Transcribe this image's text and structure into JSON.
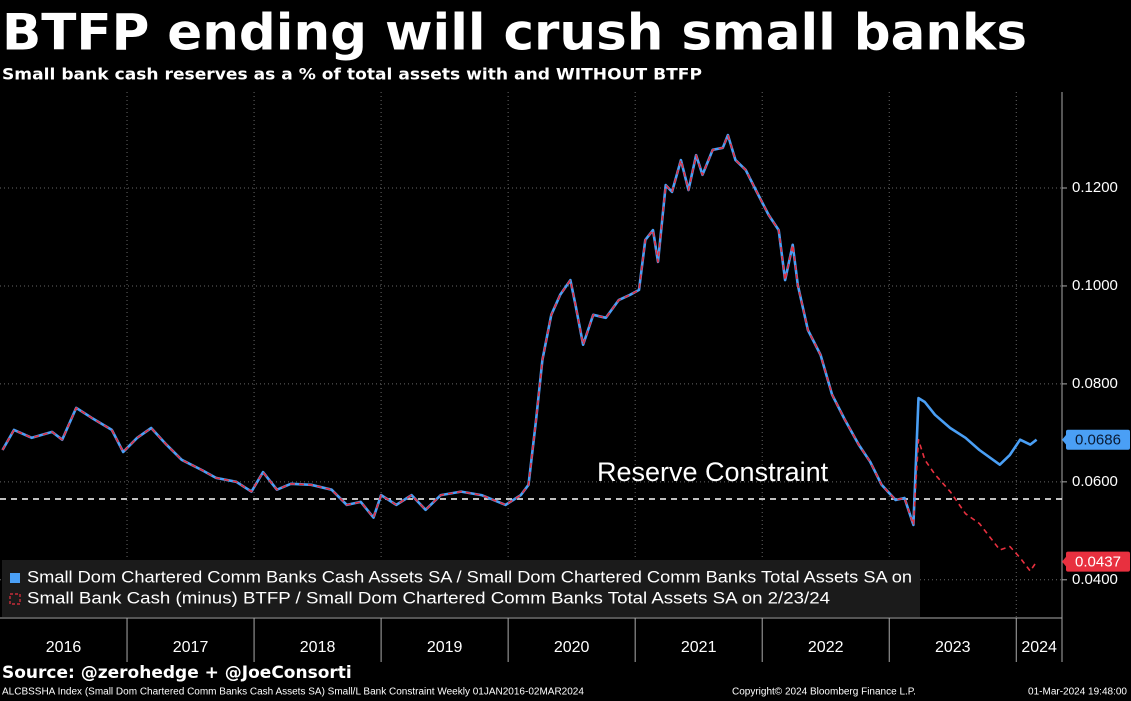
{
  "chart_data": {
    "type": "line",
    "title": "BTFP ending will crush small banks",
    "subtitle": "Small bank cash reserves as a % of total assets with and WITHOUT BTFP",
    "annotation": "Reserve Constraint",
    "reserve_line": 0.0565,
    "x": [
      2016.02,
      2016.11,
      2016.25,
      2016.41,
      2016.49,
      2016.6,
      2016.72,
      2016.88,
      2016.97,
      2017.08,
      2017.19,
      2017.31,
      2017.43,
      2017.59,
      2017.7,
      2017.86,
      2017.98,
      2018.07,
      2018.18,
      2018.29,
      2018.45,
      2018.61,
      2018.73,
      2018.84,
      2018.94,
      2019.0,
      2019.12,
      2019.24,
      2019.35,
      2019.47,
      2019.63,
      2019.79,
      2019.98,
      2020.1,
      2020.16,
      2020.22,
      2020.27,
      2020.34,
      2020.41,
      2020.49,
      2020.53,
      2020.59,
      2020.67,
      2020.77,
      2020.87,
      2020.96,
      2021.03,
      2021.08,
      2021.14,
      2021.18,
      2021.24,
      2021.29,
      2021.36,
      2021.42,
      2021.48,
      2021.53,
      2021.61,
      2021.69,
      2021.73,
      2021.79,
      2021.87,
      2021.95,
      2022.05,
      2022.13,
      2022.18,
      2022.24,
      2022.28,
      2022.36,
      2022.46,
      2022.55,
      2022.65,
      2022.76,
      2022.85,
      2022.94,
      2023.05,
      2023.12,
      2023.19,
      2023.23,
      2023.28,
      2023.36,
      2023.48,
      2023.6,
      2023.71,
      2023.87,
      2023.95,
      2024.03,
      2024.11,
      2024.16
    ],
    "series": [
      {
        "name": "Small Dom Chartered Comm Banks Cash Assets SA / Small Dom Chartered Comm Banks Total Assets SA on",
        "color": "#4a9ff5",
        "style": "solid",
        "last_value_label": "0.0686",
        "values": [
          0.0665,
          0.0706,
          0.069,
          0.0702,
          0.0686,
          0.0751,
          0.0731,
          0.0706,
          0.0661,
          0.069,
          0.071,
          0.0676,
          0.0645,
          0.0624,
          0.0608,
          0.06,
          0.058,
          0.062,
          0.0584,
          0.0596,
          0.0594,
          0.0584,
          0.0553,
          0.0559,
          0.0527,
          0.0573,
          0.0553,
          0.0573,
          0.0543,
          0.0573,
          0.058,
          0.0573,
          0.0553,
          0.0573,
          0.0594,
          0.0727,
          0.0849,
          0.0941,
          0.0982,
          0.1012,
          0.0961,
          0.088,
          0.0941,
          0.0935,
          0.0971,
          0.0982,
          0.0992,
          0.1094,
          0.1114,
          0.1049,
          0.1206,
          0.1192,
          0.1257,
          0.1196,
          0.1267,
          0.1227,
          0.1278,
          0.1282,
          0.1308,
          0.1257,
          0.1237,
          0.1196,
          0.1145,
          0.1114,
          0.1012,
          0.1084,
          0.1002,
          0.091,
          0.0859,
          0.0778,
          0.0727,
          0.0676,
          0.0641,
          0.0594,
          0.0563,
          0.0567,
          0.0512,
          0.0771,
          0.0763,
          0.0737,
          0.071,
          0.069,
          0.0665,
          0.0635,
          0.0655,
          0.0686,
          0.0676,
          0.0686
        ]
      },
      {
        "name": "Small Bank Cash (minus) BTFP / Small Dom Chartered Comm Banks Total Assets SA on 2/23/24",
        "color": "#e8303f",
        "style": "dashed",
        "last_value_label": "0.0437",
        "values": [
          0.0665,
          0.0706,
          0.069,
          0.0702,
          0.0686,
          0.0751,
          0.0731,
          0.0706,
          0.0661,
          0.069,
          0.071,
          0.0676,
          0.0645,
          0.0624,
          0.0608,
          0.06,
          0.058,
          0.062,
          0.0584,
          0.0596,
          0.0594,
          0.0584,
          0.0553,
          0.0559,
          0.0527,
          0.0573,
          0.0553,
          0.0573,
          0.0543,
          0.0573,
          0.058,
          0.0573,
          0.0553,
          0.0573,
          0.0594,
          0.0727,
          0.0849,
          0.0941,
          0.0982,
          0.1012,
          0.0961,
          0.088,
          0.0941,
          0.0935,
          0.0971,
          0.0982,
          0.0992,
          0.1094,
          0.1114,
          0.1049,
          0.1206,
          0.1192,
          0.1257,
          0.1196,
          0.1267,
          0.1227,
          0.1278,
          0.1282,
          0.1308,
          0.1257,
          0.1237,
          0.1196,
          0.1145,
          0.1114,
          0.1012,
          0.1084,
          0.1002,
          0.091,
          0.0859,
          0.0778,
          0.0727,
          0.0676,
          0.0641,
          0.0594,
          0.0563,
          0.0567,
          0.0512,
          0.0686,
          0.0645,
          0.0615,
          0.058,
          0.0535,
          0.0515,
          0.0461,
          0.0468,
          0.0445,
          0.0418,
          0.0437
        ]
      }
    ],
    "xlim": [
      2016,
      2024.36
    ],
    "xticks": [
      2016,
      2017,
      2018,
      2019,
      2020,
      2021,
      2022,
      2023,
      2024
    ],
    "ylim": [
      0.0322,
      0.1396
    ],
    "yticks": [
      {
        "value": 0.04,
        "label": "0.0400"
      },
      {
        "value": 0.06,
        "label": "0.0600"
      },
      {
        "value": 0.08,
        "label": "0.0800"
      },
      {
        "value": 0.1,
        "label": "0.1000"
      },
      {
        "value": 0.12,
        "label": "0.1200"
      }
    ],
    "grid": true,
    "legend": "bottom-left",
    "source": "Source: @zerohedge + @JoeConsorti",
    "footer_left": "ALCBSSHA Index (Small Dom Chartered Comm Banks Cash Assets SA) Small/L Bank Constraint  Weekly 01JAN2016-02MAR2024",
    "footer_center": "Copyright© 2024 Bloomberg Finance L.P.",
    "footer_right": "01-Mar-2024 19:48:00"
  }
}
